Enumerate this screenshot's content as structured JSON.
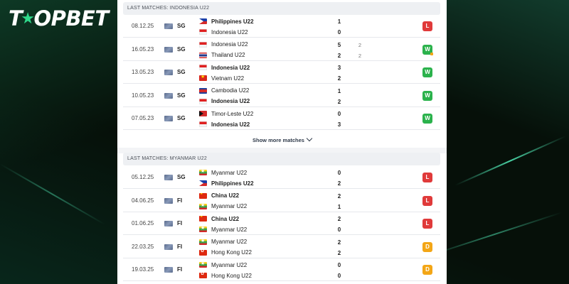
{
  "brand": {
    "logo_text": "TOPBET"
  },
  "sections": [
    {
      "title": "LAST MATCHES: INDONESIA U22",
      "show_more": "Show more matches",
      "matches": [
        {
          "date": "08.12.25",
          "competition": "SG",
          "teams": [
            {
              "name": "Philippines U22",
              "flag": "ph",
              "score": "1",
              "bold": true
            },
            {
              "name": "Indonesia U22",
              "flag": "id",
              "score": "0",
              "bold": false
            }
          ],
          "result": "L"
        },
        {
          "date": "16.05.23",
          "competition": "SG",
          "teams": [
            {
              "name": "Indonesia U22",
              "flag": "id",
              "score": "5",
              "pen": "2",
              "bold": false
            },
            {
              "name": "Thailand U22",
              "flag": "th",
              "score": "2",
              "pen": "2",
              "bold": false
            }
          ],
          "result": "W",
          "result_mark": true
        },
        {
          "date": "13.05.23",
          "competition": "SG",
          "teams": [
            {
              "name": "Indonesia U22",
              "flag": "id",
              "score": "3",
              "bold": true
            },
            {
              "name": "Vietnam U22",
              "flag": "vn",
              "score": "2",
              "bold": false
            }
          ],
          "result": "W"
        },
        {
          "date": "10.05.23",
          "competition": "SG",
          "teams": [
            {
              "name": "Cambodia U22",
              "flag": "kh",
              "score": "1",
              "bold": false
            },
            {
              "name": "Indonesia U22",
              "flag": "id",
              "score": "2",
              "bold": true
            }
          ],
          "result": "W"
        },
        {
          "date": "07.05.23",
          "competition": "SG",
          "teams": [
            {
              "name": "Timor-Leste U22",
              "flag": "tl",
              "score": "0",
              "bold": false
            },
            {
              "name": "Indonesia U22",
              "flag": "id",
              "score": "3",
              "bold": true
            }
          ],
          "result": "W"
        }
      ]
    },
    {
      "title": "LAST MATCHES: MYANMAR U22",
      "matches": [
        {
          "date": "05.12.25",
          "competition": "SG",
          "teams": [
            {
              "name": "Myanmar U22",
              "flag": "mm",
              "score": "0",
              "bold": false
            },
            {
              "name": "Philippines U22",
              "flag": "ph",
              "score": "2",
              "bold": true
            }
          ],
          "result": "L"
        },
        {
          "date": "04.06.25",
          "competition": "FI",
          "teams": [
            {
              "name": "China U22",
              "flag": "cn",
              "score": "2",
              "bold": true
            },
            {
              "name": "Myanmar U22",
              "flag": "mm",
              "score": "1",
              "bold": false
            }
          ],
          "result": "L"
        },
        {
          "date": "01.06.25",
          "competition": "FI",
          "teams": [
            {
              "name": "China U22",
              "flag": "cn",
              "score": "2",
              "bold": true
            },
            {
              "name": "Myanmar U22",
              "flag": "mm",
              "score": "0",
              "bold": false
            }
          ],
          "result": "L"
        },
        {
          "date": "22.03.25",
          "competition": "FI",
          "teams": [
            {
              "name": "Myanmar U22",
              "flag": "mm",
              "score": "2",
              "bold": false
            },
            {
              "name": "Hong Kong U22",
              "flag": "hk",
              "score": "2",
              "bold": false
            }
          ],
          "result": "D"
        },
        {
          "date": "19.03.25",
          "competition": "FI",
          "teams": [
            {
              "name": "Myanmar U22",
              "flag": "mm",
              "score": "0",
              "bold": false
            },
            {
              "name": "Hong Kong U22",
              "flag": "hk",
              "score": "0",
              "bold": false
            }
          ],
          "result": "D"
        }
      ]
    }
  ],
  "result_colors": {
    "W": "#2bb24c",
    "L": "#e03a3a",
    "D": "#f3a616"
  }
}
